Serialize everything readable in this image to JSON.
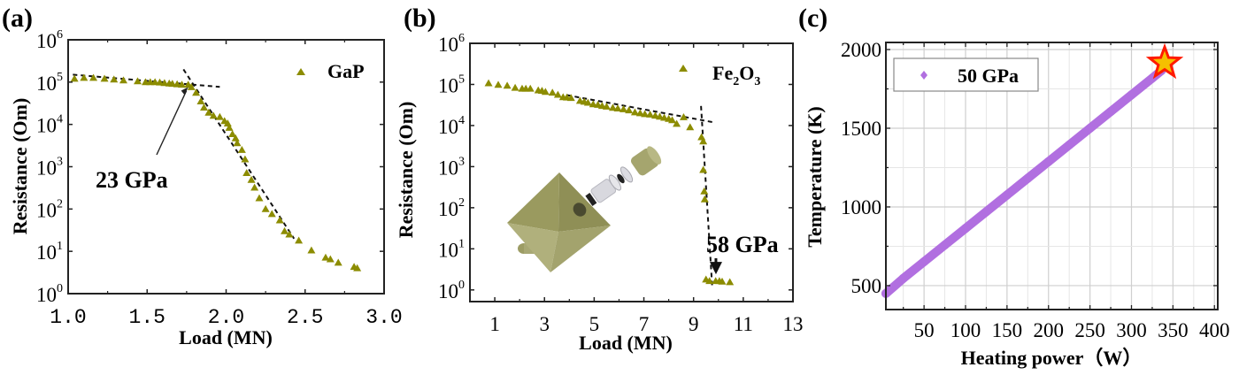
{
  "panels": [
    {
      "label": "(a)",
      "annotation": "23 GPa"
    },
    {
      "label": "(b)",
      "annotation": "58 GPa"
    },
    {
      "label": "(c)"
    }
  ],
  "colors": {
    "marker_olive": "#8c8c00",
    "line_purple": "#b16fe0",
    "star_fill": "#f5c000",
    "star_stroke": "#ff1a00",
    "grid": "#d9d9d9",
    "inset_body": "#a5a56e"
  },
  "chart_data": [
    {
      "type": "scatter",
      "title": "",
      "xlabel": "Load (MN)",
      "ylabel": "Resistance (Om)",
      "yscale": "log",
      "xlim": [
        1.0,
        3.0
      ],
      "ylim": [
        1,
        1000000
      ],
      "xticks": [
        "1.0",
        "1.5",
        "2.0",
        "2.5",
        "3.0"
      ],
      "xtick_values": [
        1.0,
        1.5,
        2.0,
        2.5,
        3.0
      ],
      "yticks": [
        {
          "base": "10",
          "exp": "0"
        },
        {
          "base": "10",
          "exp": "1"
        },
        {
          "base": "10",
          "exp": "2"
        },
        {
          "base": "10",
          "exp": "3"
        },
        {
          "base": "10",
          "exp": "4"
        },
        {
          "base": "10",
          "exp": "5"
        },
        {
          "base": "10",
          "exp": "6"
        }
      ],
      "grid": false,
      "legend": {
        "position": "top-right",
        "entries": [
          {
            "label": "GaP",
            "marker": "triangle"
          }
        ]
      },
      "series": [
        {
          "name": "GaP",
          "x": [
            1.04,
            1.1,
            1.16,
            1.23,
            1.29,
            1.35,
            1.44,
            1.49,
            1.52,
            1.55,
            1.58,
            1.61,
            1.64,
            1.66,
            1.69,
            1.72,
            1.76,
            1.78,
            1.81,
            1.84,
            1.86,
            1.89,
            1.92,
            1.96,
            1.99,
            2.01,
            2.02,
            2.04,
            2.06,
            2.07,
            2.1,
            2.12,
            2.13,
            2.16,
            2.18,
            2.21,
            2.25,
            2.29,
            2.34,
            2.37,
            2.4,
            2.46,
            2.54,
            2.63,
            2.66,
            2.71,
            2.81,
            2.83
          ],
          "y": [
            120000,
            126000,
            126000,
            120000,
            115000,
            110000,
            105000,
            100000,
            100000,
            100000,
            98000,
            95000,
            93000,
            91000,
            89000,
            87000,
            87000,
            76000,
            56000,
            35000,
            25000,
            19000,
            16000,
            15000,
            12000,
            10500,
            8300,
            5900,
            4700,
            3600,
            2500,
            1500,
            710,
            490,
            320,
            180,
            100,
            76,
            54,
            30,
            25,
            18,
            10.5,
            7.1,
            6.5,
            5.4,
            4.3,
            4.0
          ]
        }
      ],
      "guides": [
        {
          "style": "dashed",
          "from": [
            1.03,
            150000
          ],
          "to": [
            1.96,
            77000
          ]
        },
        {
          "style": "dashed",
          "from": [
            1.73,
            200000
          ],
          "to": [
            2.43,
            20
          ]
        }
      ],
      "annotations": [
        {
          "text": "23 GPa",
          "arrow_to": [
            1.76,
            76000
          ]
        }
      ]
    },
    {
      "type": "scatter",
      "title": "",
      "xlabel": "Load (MN)",
      "ylabel": "Resistance (Om)",
      "yscale": "log",
      "xlim": [
        0,
        13
      ],
      "ylim": [
        0.52,
        1000000
      ],
      "xticks": [
        "1",
        "3",
        "5",
        "7",
        "9",
        "11",
        "13"
      ],
      "xtick_values": [
        1,
        3,
        5,
        7,
        9,
        11,
        13
      ],
      "yticks": [
        {
          "base": "10",
          "exp": "0"
        },
        {
          "base": "10",
          "exp": "1"
        },
        {
          "base": "10",
          "exp": "2"
        },
        {
          "base": "10",
          "exp": "3"
        },
        {
          "base": "10",
          "exp": "4"
        },
        {
          "base": "10",
          "exp": "5"
        },
        {
          "base": "10",
          "exp": "6"
        }
      ],
      "grid": false,
      "legend": {
        "position": "top-right",
        "entries": [
          {
            "label_main": "Fe",
            "sub1": "2",
            "mid": "O",
            "sub2": "3",
            "marker": "triangle"
          }
        ]
      },
      "series": [
        {
          "name": "Fe2O3",
          "x": [
            0.75,
            1.14,
            1.5,
            1.82,
            2.1,
            2.25,
            2.43,
            2.75,
            2.9,
            3.04,
            3.32,
            3.54,
            3.75,
            3.9,
            4.07,
            4.43,
            4.6,
            4.75,
            4.96,
            5.15,
            5.32,
            5.5,
            5.75,
            5.95,
            6.18,
            6.4,
            6.64,
            6.85,
            7.04,
            7.25,
            7.46,
            7.64,
            7.82,
            8.0,
            8.14,
            8.32,
            8.6,
            8.86,
            9.32,
            9.39,
            9.39,
            9.43,
            9.45,
            9.5,
            9.64,
            9.89,
            10.04,
            10.15,
            10.46
          ],
          "y": [
            107000,
            98000,
            93000,
            83000,
            79000,
            79000,
            79000,
            72000,
            70000,
            66000,
            63000,
            56000,
            49000,
            48000,
            47000,
            40000,
            38000,
            36000,
            33000,
            32000,
            30000,
            29000,
            27000,
            26000,
            25000,
            23500,
            21000,
            20000,
            19000,
            18500,
            17400,
            16500,
            15500,
            14500,
            13500,
            11000,
            16000,
            9100,
            5200,
            4100,
            830,
            250,
            160,
            1.8,
            1.65,
            1.65,
            1.65,
            1.6,
            1.55
          ]
        }
      ],
      "guides": [
        {
          "style": "dashed",
          "from": [
            3.9,
            55000
          ],
          "to": [
            9.8,
            12000
          ]
        },
        {
          "style": "dashed",
          "from": [
            9.3,
            30000
          ],
          "to": [
            9.75,
            1.2
          ]
        }
      ],
      "annotations": [
        {
          "text": "58 GPa",
          "arrow_to": [
            9.9,
            2.4
          ]
        }
      ]
    },
    {
      "type": "scatter",
      "title": "",
      "xlabel": "Heating power（W）",
      "ylabel": "Temperature (K)",
      "xlim": [
        4,
        404
      ],
      "ylim": [
        348,
        2045
      ],
      "xticks": [
        "50",
        "100",
        "150",
        "200",
        "250",
        "300",
        "350",
        "400"
      ],
      "xtick_values": [
        50,
        100,
        150,
        200,
        250,
        300,
        350,
        400
      ],
      "yticks": [
        "500",
        "1000",
        "1500",
        "2000"
      ],
      "ytick_values": [
        500,
        1000,
        1500,
        2000
      ],
      "grid": true,
      "legend": {
        "position": "top-left",
        "entries": [
          {
            "label": "50 GPa",
            "marker": "diamond"
          }
        ]
      },
      "series": [
        {
          "name": "50 GPa",
          "x": [
            4,
            25,
            50,
            75,
            100,
            125,
            150,
            175,
            200,
            225,
            250,
            275,
            300,
            325,
            336
          ],
          "y": [
            450,
            546,
            652,
            758,
            864,
            970,
            1076,
            1182,
            1288,
            1394,
            1500,
            1606,
            1712,
            1818,
            1866
          ]
        }
      ],
      "highlight": {
        "marker": "star",
        "x": 340,
        "y": 1915
      }
    }
  ]
}
